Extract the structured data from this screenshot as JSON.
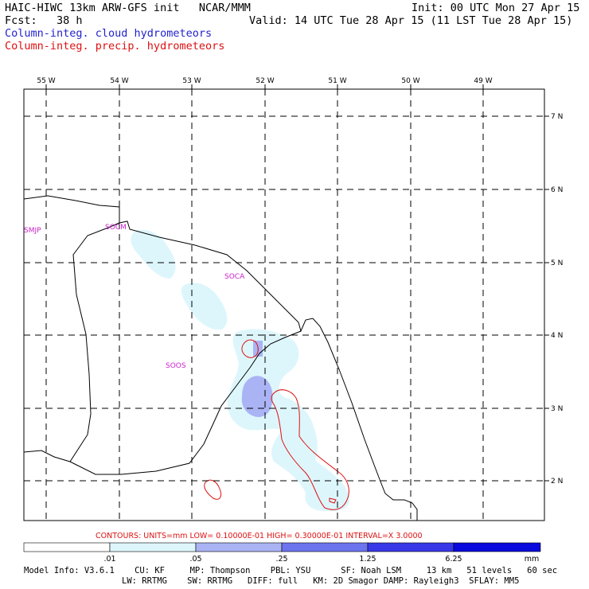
{
  "header": {
    "line1_left": "HAIC-HIWC 13km ARW-GFS init   NCAR/MMM",
    "line1_right": "Init: 00 UTC Mon 27 Apr 15",
    "line2_left": "Fcst:   38 h",
    "line2_right": "Valid: 14 UTC Tue 28 Apr 15 (11 LST Tue 28 Apr 15)",
    "legend_cloud": "Column-integ. cloud hydrometeors",
    "legend_precip": "Column-integ. precip. hydrometeors"
  },
  "map": {
    "lon_labels": [
      "55 W",
      "54 W",
      "53 W",
      "52 W",
      "51 W",
      "50 W",
      "49 W"
    ],
    "lat_labels": [
      "7 N",
      "6 N",
      "5 N",
      "4 N",
      "3 N",
      "2 N"
    ],
    "stations": [
      "SMJP",
      "SOCM",
      "SOCA",
      "SOOS"
    ]
  },
  "contours_info": "CONTOURS:  UNITS=mm  LOW= 0.10000E-01  HIGH= 0.30000E-01  INTERVAL=X  3.0000",
  "colorbar": {
    "labels": [
      ".01",
      ".05",
      ".25",
      "1.25",
      "6.25"
    ],
    "units": "mm",
    "colors": [
      "#ffffff",
      "#ddf6fc",
      "#aab4f4",
      "#6c74ee",
      "#3838e8",
      "#0a0adc"
    ]
  },
  "model_info": {
    "line1": "Model Info: V3.6.1    CU: KF     MP: Thompson    PBL: YSU      SF: Noah LSM     13 km   51 levels   60 sec",
    "line2": "LW: RRTMG    SW: RRTMG   DIFF: full   KM: 2D Smagor DAMP: Rayleigh3  SFLAY: MM5"
  }
}
